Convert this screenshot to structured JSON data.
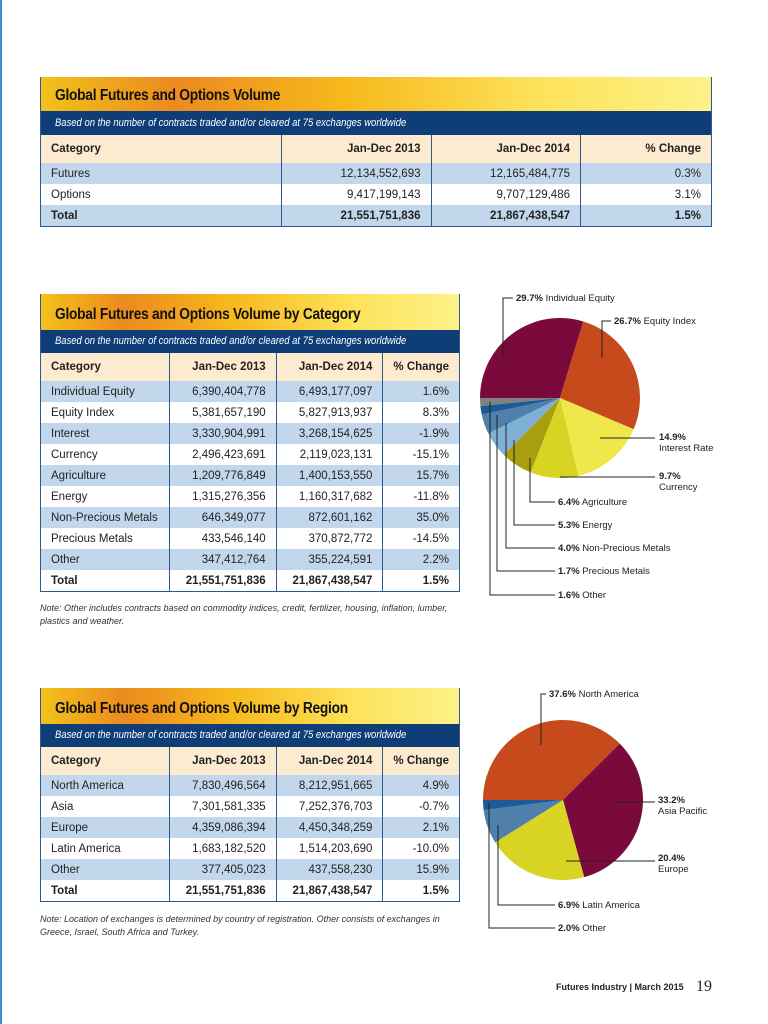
{
  "subtitle": "Based on the number of contracts traded and/or cleared at 75 exchanges worldwide",
  "headers": {
    "category": "Category",
    "y2013": "Jan-Dec 2013",
    "y2014": "Jan-Dec 2014",
    "change": "% Change"
  },
  "table1": {
    "title": "Global Futures and Options Volume",
    "rows": [
      [
        "Futures",
        "12,134,552,693",
        "12,165,484,775",
        "0.3%"
      ],
      [
        "Options",
        "9,417,199,143",
        "9,707,129,486",
        "3.1%"
      ],
      [
        "Total",
        "21,551,751,836",
        "21,867,438,547",
        "1.5%"
      ]
    ]
  },
  "table2": {
    "title": "Global Futures and Options Volume by Category",
    "rows": [
      [
        "Individual Equity",
        "6,390,404,778",
        "6,493,177,097",
        "1.6%"
      ],
      [
        "Equity Index",
        "5,381,657,190",
        "5,827,913,937",
        "8.3%"
      ],
      [
        "Interest",
        "3,330,904,991",
        "3,268,154,625",
        "-1.9%"
      ],
      [
        "Currency",
        "2,496,423,691",
        "2,119,023,131",
        "-15.1%"
      ],
      [
        "Agriculture",
        "1,209,776,849",
        "1,400,153,550",
        "15.7%"
      ],
      [
        "Energy",
        "1,315,276,356",
        "1,160,317,682",
        "-11.8%"
      ],
      [
        "Non-Precious Metals",
        "646,349,077",
        "872,601,162",
        "35.0%"
      ],
      [
        "Precious Metals",
        "433,546,140",
        "370,872,772",
        "-14.5%"
      ],
      [
        "Other",
        "347,412,764",
        "355,224,591",
        "2.2%"
      ],
      [
        "Total",
        "21,551,751,836",
        "21,867,438,547",
        "1.5%"
      ]
    ],
    "note": "Note: Other includes contracts based on commodity indices, credit, fertilizer, housing, inflation, lumber, plastics and weather."
  },
  "table3": {
    "title": "Global Futures and Options Volume by Region",
    "rows": [
      [
        "North America",
        "7,830,496,564",
        "8,212,951,665",
        "4.9%"
      ],
      [
        "Asia",
        "7,301,581,335",
        "7,252,376,703",
        "-0.7%"
      ],
      [
        "Europe",
        "4,359,086,394",
        "4,450,348,259",
        "2.1%"
      ],
      [
        "Latin America",
        "1,683,182,520",
        "1,514,203,690",
        "-10.0%"
      ],
      [
        "Other",
        "377,405,023",
        "437,558,230",
        "15.9%"
      ],
      [
        "Total",
        "21,551,751,836",
        "21,867,438,547",
        "1.5%"
      ]
    ],
    "note": "Note: Location of exchanges is determined by country of registration. Other consists of exchanges in Greece, Israel, South Africa and Turkey."
  },
  "chart_data": [
    {
      "type": "pie",
      "slices": [
        {
          "label": "Individual Equity",
          "pct_text": "29.7%",
          "value": 29.7,
          "color": "#7a0a3c"
        },
        {
          "label": "Equity Index",
          "pct_text": "26.7%",
          "value": 26.7,
          "color": "#c64a1c"
        },
        {
          "label": "Interest Rate",
          "pct_text": "14.9%",
          "value": 14.9,
          "color": "#eee84a"
        },
        {
          "label": "Currency",
          "pct_text": "9.7%",
          "value": 9.7,
          "color": "#d9d423"
        },
        {
          "label": "Agriculture",
          "pct_text": "6.4%",
          "value": 6.4,
          "color": "#a99e10"
        },
        {
          "label": "Energy",
          "pct_text": "5.3%",
          "value": 5.3,
          "color": "#7fb0d6"
        },
        {
          "label": "Non-Precious Metals",
          "pct_text": "4.0%",
          "value": 4.0,
          "color": "#4f7fab"
        },
        {
          "label": "Precious Metals",
          "pct_text": "1.7%",
          "value": 1.7,
          "color": "#1a5a96"
        },
        {
          "label": "Other",
          "pct_text": "1.6%",
          "value": 1.6,
          "color": "#808080"
        }
      ]
    },
    {
      "type": "pie",
      "slices": [
        {
          "label": "North America",
          "pct_text": "37.6%",
          "value": 37.6,
          "color": "#c64a1c"
        },
        {
          "label": "Asia Pacific",
          "pct_text": "33.2%",
          "value": 33.2,
          "color": "#7a0a3c"
        },
        {
          "label": "Europe",
          "pct_text": "20.4%",
          "value": 20.4,
          "color": "#d9d423"
        },
        {
          "label": "Latin America",
          "pct_text": "6.9%",
          "value": 6.9,
          "color": "#4f7fab"
        },
        {
          "label": "Other",
          "pct_text": "2.0%",
          "value": 2.0,
          "color": "#1a5a96"
        }
      ]
    }
  ],
  "footer": {
    "publication": "Futures Industry",
    "date": "March 2015",
    "page": "19"
  }
}
